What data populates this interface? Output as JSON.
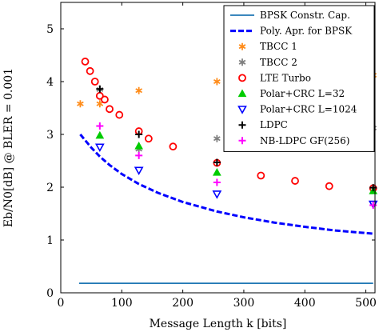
{
  "chart_data": {
    "type": "scatter",
    "xlabel": "Message Length k [bits]",
    "ylabel": "Eb/N0[dB] @ BLER = 0.001",
    "xlim": [
      0,
      515
    ],
    "ylim": [
      0,
      5.5
    ],
    "xticks": [
      0,
      100,
      200,
      300,
      400,
      500
    ],
    "yticks": [
      0,
      1,
      2,
      3,
      4,
      5
    ],
    "grid": false,
    "legend_position": "top-right",
    "series": [
      {
        "name": "BPSK Constr. Cap.",
        "kind": "line",
        "color": "#1f77b4",
        "dash": "solid",
        "x": [
          30,
          512
        ],
        "y": [
          0.18,
          0.18
        ]
      },
      {
        "name": "Poly. Apr. for BPSK",
        "kind": "line",
        "color": "#0000ff",
        "dash": "dashed",
        "x": [
          32,
          50,
          64,
          80,
          100,
          128,
          160,
          200,
          256,
          300,
          350,
          400,
          450,
          512
        ],
        "y": [
          3.0,
          2.75,
          2.58,
          2.42,
          2.25,
          2.06,
          1.89,
          1.72,
          1.54,
          1.43,
          1.33,
          1.25,
          1.18,
          1.12
        ]
      },
      {
        "name": "TBCC 1",
        "kind": "marker",
        "marker": "asterisk",
        "color": "#ff8c1a",
        "x": [
          32,
          64,
          128,
          256,
          512
        ],
        "y": [
          3.58,
          3.58,
          3.83,
          4.0,
          4.12
        ]
      },
      {
        "name": "TBCC 2",
        "kind": "marker",
        "marker": "asterisk",
        "color": "#808080",
        "x": [
          64,
          128,
          256,
          512
        ],
        "y": [
          3.85,
          2.72,
          2.92,
          3.12
        ]
      },
      {
        "name": "LTE Turbo",
        "kind": "marker",
        "marker": "circle",
        "color": "#ff0000",
        "x": [
          40,
          48,
          56,
          64,
          72,
          80,
          96,
          128,
          144,
          184,
          256,
          328,
          384,
          440,
          512
        ],
        "y": [
          4.38,
          4.2,
          4.0,
          3.73,
          3.66,
          3.48,
          3.37,
          3.06,
          2.92,
          2.77,
          2.46,
          2.22,
          2.12,
          2.02,
          1.98
        ]
      },
      {
        "name": "Polar+CRC L=32",
        "kind": "marker",
        "marker": "triangle-up",
        "color": "#00cc00",
        "x": [
          64,
          128,
          256,
          512
        ],
        "y": [
          2.98,
          2.78,
          2.28,
          1.93
        ]
      },
      {
        "name": "Polar+CRC L=1024",
        "kind": "marker",
        "marker": "triangle-down",
        "color": "#0000ff",
        "x": [
          64,
          128,
          256,
          512
        ],
        "y": [
          2.76,
          2.32,
          1.87,
          1.68
        ]
      },
      {
        "name": "LDPC",
        "kind": "marker",
        "marker": "plus",
        "color": "#000000",
        "x": [
          64,
          128,
          256,
          512
        ],
        "y": [
          3.86,
          3.0,
          2.47,
          1.99
        ]
      },
      {
        "name": "NB-LDPC GF(256)",
        "kind": "marker",
        "marker": "plus",
        "color": "#ff00ff",
        "x": [
          64,
          128,
          256,
          512
        ],
        "y": [
          3.16,
          2.6,
          2.09,
          1.66
        ]
      }
    ]
  }
}
